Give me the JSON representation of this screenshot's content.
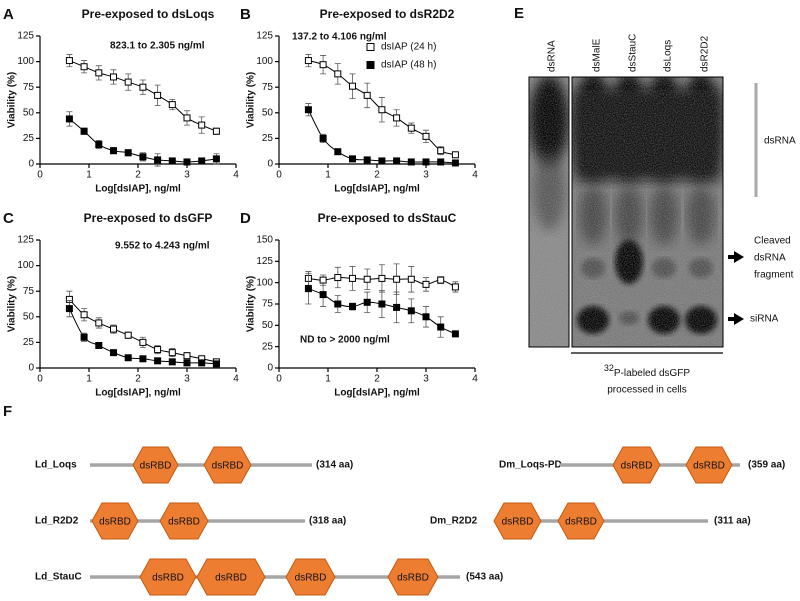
{
  "chart_data": [
    {
      "type": "scatter",
      "panel": "A",
      "title": "Pre-exposed to dsLoqs",
      "annotation": "823.1 to 2.305 ng/ml",
      "x_label": "Log[dsIAP], ng/ml",
      "y_label": "Viability (%)",
      "xlim": [
        0,
        4
      ],
      "xticks": [
        0,
        1,
        2,
        3,
        4
      ],
      "ylim": [
        0,
        125
      ],
      "yticks": [
        0,
        25,
        50,
        75,
        100,
        125
      ],
      "x": [
        0.6,
        0.9,
        1.2,
        1.5,
        1.8,
        2.1,
        2.4,
        2.7,
        3.0,
        3.3,
        3.6
      ],
      "series": [
        {
          "color": "#000000",
          "filled": false,
          "values": [
            101,
            95,
            89,
            85,
            80,
            75,
            67,
            58,
            45,
            38,
            32
          ],
          "errors": [
            6,
            6,
            7,
            7,
            8,
            7,
            10,
            5,
            7,
            8,
            3
          ]
        },
        {
          "color": "#000000",
          "filled": true,
          "values": [
            44,
            32,
            19,
            13,
            11,
            7,
            4,
            3,
            2,
            3,
            5
          ],
          "errors": [
            7,
            3,
            4,
            3,
            3,
            4,
            6,
            3,
            3,
            3,
            5
          ]
        }
      ]
    },
    {
      "type": "scatter",
      "panel": "B",
      "title": "Pre-exposed to dsR2D2",
      "annotation": "137.2 to 4.106 ng/ml",
      "x_label": "Log[dsIAP], ng/ml",
      "y_label": "Viability (%)",
      "legend": "upper right",
      "xlim": [
        0,
        4
      ],
      "xticks": [
        0,
        1,
        2,
        3,
        4
      ],
      "ylim": [
        0,
        125
      ],
      "yticks": [
        0,
        25,
        50,
        75,
        100,
        125
      ],
      "x": [
        0.6,
        0.9,
        1.2,
        1.5,
        1.8,
        2.1,
        2.4,
        2.7,
        3.0,
        3.3,
        3.6
      ],
      "series": [
        {
          "name": "dsIAP (24 h)",
          "color": "#000000",
          "filled": false,
          "values": [
            101,
            97,
            88,
            76,
            67,
            53,
            45,
            35,
            27,
            13,
            9
          ],
          "errors": [
            6,
            9,
            10,
            12,
            12,
            12,
            8,
            5,
            6,
            4,
            2
          ]
        },
        {
          "name": "dsIAP (48 h)",
          "color": "#000000",
          "filled": true,
          "values": [
            53,
            25,
            12,
            5,
            4,
            3,
            3,
            2,
            2,
            2,
            1
          ],
          "errors": [
            6,
            4,
            2,
            2,
            1,
            1,
            1,
            1,
            1,
            1,
            1
          ]
        }
      ]
    },
    {
      "type": "scatter",
      "panel": "C",
      "title": "Pre-exposed to dsGFP",
      "annotation": "9.552 to 4.243 ng/ml",
      "x_label": "Log[dsIAP], ng/ml",
      "y_label": "Viability (%)",
      "xlim": [
        0,
        4
      ],
      "xticks": [
        0,
        1,
        2,
        3,
        4
      ],
      "ylim": [
        0,
        125
      ],
      "yticks": [
        0,
        25,
        50,
        75,
        100,
        125
      ],
      "x": [
        0.6,
        0.9,
        1.2,
        1.5,
        1.8,
        2.1,
        2.4,
        2.7,
        3.0,
        3.3,
        3.6
      ],
      "series": [
        {
          "color": "#000000",
          "filled": false,
          "values": [
            67,
            52,
            44,
            38,
            32,
            25,
            18,
            15,
            12,
            9,
            6
          ],
          "errors": [
            8,
            6,
            5,
            4,
            3,
            5,
            4,
            4,
            3,
            2,
            2
          ]
        },
        {
          "color": "#000000",
          "filled": true,
          "values": [
            58,
            30,
            22,
            15,
            10,
            9,
            7,
            6,
            5,
            5,
            4
          ],
          "errors": [
            8,
            4,
            3,
            2,
            2,
            2,
            2,
            2,
            1,
            1,
            1
          ]
        }
      ]
    },
    {
      "type": "scatter",
      "panel": "D",
      "title": "Pre-exposed to dsStauC",
      "annotation": "ND to > 2000 ng/ml",
      "x_label": "Log[dsIAP], ng/ml",
      "y_label": "Viability (%)",
      "xlim": [
        0,
        4
      ],
      "xticks": [
        0,
        1,
        2,
        3,
        4
      ],
      "ylim": [
        0,
        150
      ],
      "yticks": [
        0,
        25,
        50,
        75,
        100,
        125,
        150
      ],
      "x": [
        0.6,
        0.9,
        1.2,
        1.5,
        1.8,
        2.1,
        2.4,
        2.7,
        3.0,
        3.3,
        3.6
      ],
      "series": [
        {
          "color": "#000000",
          "filled": false,
          "values": [
            105,
            103,
            106,
            105,
            104,
            105,
            104,
            104,
            98,
            103,
            95
          ],
          "errors": [
            8,
            6,
            12,
            14,
            12,
            16,
            18,
            15,
            8,
            4,
            6
          ]
        },
        {
          "color": "#000000",
          "filled": true,
          "values": [
            93,
            86,
            75,
            72,
            77,
            75,
            71,
            67,
            60,
            48,
            40
          ],
          "errors": [
            18,
            14,
            10,
            4,
            12,
            16,
            18,
            14,
            12,
            12,
            3
          ]
        }
      ]
    }
  ],
  "gel": {
    "panel": "E",
    "lanes": [
      "dsRNA",
      "dsMalE",
      "dsStauC",
      "dsLoqs",
      "dsR2D2"
    ],
    "band_labels": [
      [
        "dsRNA"
      ],
      [
        "Cleaved",
        "dsRNA",
        "fragment"
      ],
      [
        "siRNA"
      ]
    ],
    "caption_superscript": "32",
    "caption": [
      "P-labeled dsGFP",
      "processed in cells"
    ]
  },
  "domains": {
    "panel": "F",
    "proteins": [
      {
        "name": "Ld_Loqs",
        "domains": [
          "dsRBD",
          "dsRBD"
        ],
        "length": "(314 aa)"
      },
      {
        "name": "Ld_R2D2",
        "domains": [
          "dsRBD",
          "dsRBD"
        ],
        "length": "(318 aa)"
      },
      {
        "name": "Ld_StauC",
        "domains": [
          "dsRBD",
          "dsRBD",
          "dsRBD",
          "dsRBD"
        ],
        "length": "(543 aa)"
      },
      {
        "name": "Dm_Loqs-PD",
        "domains": [
          "dsRBD",
          "dsRBD"
        ],
        "length": "(359 aa)"
      },
      {
        "name": "Dm_R2D2",
        "domains": [
          "dsRBD",
          "dsRBD"
        ],
        "length": "(311 aa)"
      }
    ]
  }
}
